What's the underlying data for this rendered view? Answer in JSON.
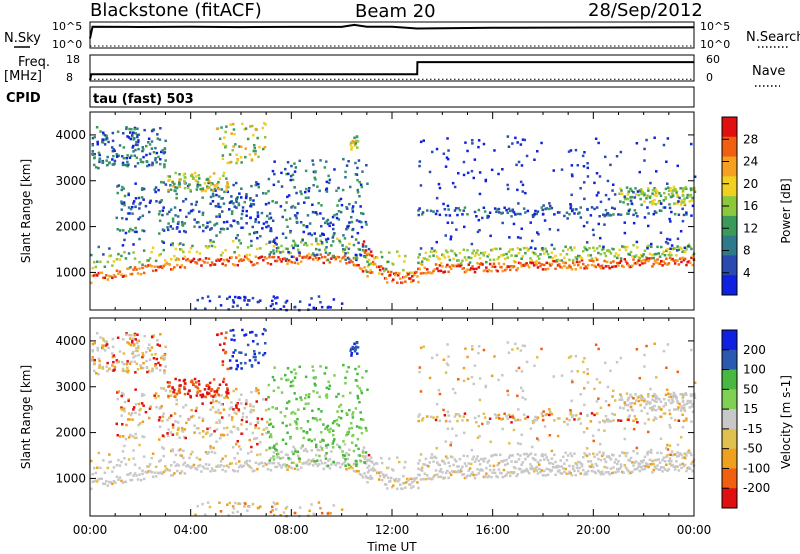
{
  "header": {
    "station": "Blackstone (fitACF)",
    "beam": "Beam 20",
    "date": "28/Sep/2012"
  },
  "strip_labels": {
    "nsky": "N.Sky",
    "nsearch": "N.Search",
    "freq": "Freq.",
    "freq_unit": "[MHz]",
    "nave": "Nave",
    "cpid": "CPID",
    "cpid_value": "tau (fast) 503"
  },
  "colors": {
    "power": [
      "#1020e0",
      "#2a4ab0",
      "#2f7a8a",
      "#3a9a5a",
      "#8cc83c",
      "#f0d020",
      "#f5a020",
      "#f06010",
      "#e01010"
    ],
    "velocity": [
      "#1020e0",
      "#2a5ab0",
      "#48b840",
      "#7fd055",
      "#c8c8c8",
      "#e0c050",
      "#f0a020",
      "#f06010",
      "#e01010"
    ],
    "velocity_gray": "#c8c8c8"
  },
  "chart_data": [
    {
      "type": "line",
      "title": "N.Sky / N.Search",
      "y_ticks_left": [
        "10^5",
        "10^0"
      ],
      "y_ticks_right": [
        "10^5",
        "10^0"
      ],
      "series": [
        {
          "name": "N.Sky",
          "x": [
            0,
            0.1,
            2,
            4,
            6,
            8,
            10,
            10.5,
            11,
            12,
            13,
            16,
            20,
            24
          ],
          "values": [
            200,
            300000,
            250000,
            280000,
            230000,
            260000,
            270000,
            900000,
            300000,
            280000,
            100000,
            150000,
            180000,
            200000
          ]
        },
        {
          "name": "N.Search",
          "x": [
            0,
            24
          ],
          "values": [
            1,
            1
          ]
        }
      ],
      "xlim": [
        0,
        24
      ]
    },
    {
      "type": "line",
      "title": "Freq / Nave",
      "y_ticks_left": [
        "18",
        "8"
      ],
      "y_ticks_right": [
        "60",
        "0"
      ],
      "series": [
        {
          "name": "Freq.",
          "x": [
            0,
            0.05,
            13,
            13.01,
            24
          ],
          "values": [
            8,
            10.5,
            10.5,
            15.8,
            15.8
          ]
        },
        {
          "name": "Nave",
          "x": [
            0,
            24
          ],
          "values": [
            2,
            2
          ]
        }
      ],
      "xlim": [
        0,
        24
      ]
    },
    {
      "type": "heatmap",
      "ylabel": "Slant Range [km]",
      "colorbar_label": "Power [dB]",
      "colorbar_ticks": [
        "4",
        "8",
        "12",
        "16",
        "20",
        "24",
        "28"
      ],
      "y_ticks": [
        "1000",
        "2000",
        "3000",
        "4000"
      ],
      "ylim": [
        180,
        4500
      ],
      "xlim": [
        0,
        24
      ]
    },
    {
      "type": "heatmap",
      "ylabel": "Slant Range [km]",
      "xlabel": "Time UT",
      "colorbar_label": "Velocity [m s-1]",
      "colorbar_ticks": [
        "200",
        "100",
        "50",
        "15",
        "-15",
        "-50",
        "-100",
        "-200"
      ],
      "y_ticks": [
        "1000",
        "2000",
        "3000",
        "4000"
      ],
      "x_ticks": [
        "00:00",
        "04:00",
        "08:00",
        "12:00",
        "16:00",
        "20:00",
        "00:00"
      ],
      "ylim": [
        180,
        4500
      ],
      "xlim": [
        0,
        24
      ]
    }
  ]
}
